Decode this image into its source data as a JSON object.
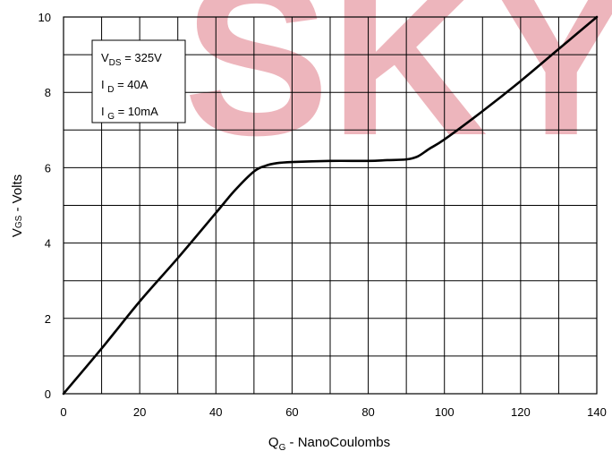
{
  "watermark": "SKY",
  "colors": {
    "line": "#000000",
    "grid": "#000000",
    "watermark": "#e07a86"
  },
  "legend": [
    {
      "main": "V",
      "sub": "DS",
      "rest": " = 325V"
    },
    {
      "main": "I ",
      "sub": "D",
      "rest": " = 40A"
    },
    {
      "main": "I ",
      "sub": "G",
      "rest": " = 10mA"
    }
  ],
  "chart_data": {
    "type": "line",
    "title": "",
    "xlabel": {
      "main": "Q",
      "sub": "G",
      "rest": " - NanoCoulombs"
    },
    "ylabel": {
      "main": "V",
      "sub": "GS",
      "rest": " - Volts"
    },
    "xlim": [
      0,
      140
    ],
    "ylim": [
      0,
      10
    ],
    "x_ticks": [
      0,
      20,
      40,
      60,
      80,
      100,
      120,
      140
    ],
    "y_ticks": [
      0,
      2,
      4,
      6,
      8,
      10
    ],
    "x_minor_step": 10,
    "y_minor_step": 1,
    "grid": true,
    "legend_position": "top-left",
    "series": [
      {
        "x": [
          0,
          10,
          20,
          30,
          40,
          45,
          50,
          53,
          56,
          60,
          70,
          80,
          85,
          90,
          93,
          96,
          100,
          110,
          120,
          130,
          140
        ],
        "y": [
          0,
          1.2,
          2.45,
          3.6,
          4.8,
          5.4,
          5.9,
          6.05,
          6.12,
          6.15,
          6.18,
          6.18,
          6.2,
          6.22,
          6.3,
          6.5,
          6.75,
          7.5,
          8.3,
          9.15,
          10
        ]
      }
    ]
  }
}
